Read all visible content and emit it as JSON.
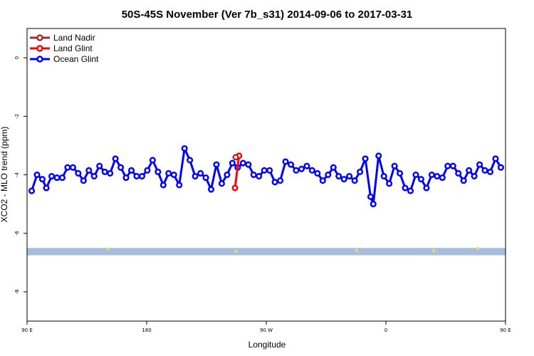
{
  "chart_data": {
    "type": "line",
    "title": "50S-45S November (Ver 7b_s31)   2014-09-06 to 2017-03-31",
    "xlabel": "Longitude",
    "ylabel": "XCO2 - MLO trend (ppm)",
    "xlim": [
      90,
      450
    ],
    "ylim": [
      -9,
      1
    ],
    "x_ticks": [
      {
        "value": 90,
        "label": "90 E"
      },
      {
        "value": 180,
        "label": "180"
      },
      {
        "value": 270,
        "label": "90 W"
      },
      {
        "value": 360,
        "label": "0"
      },
      {
        "value": 450,
        "label": "90 E"
      },
      {
        "value": 540,
        "label": "180"
      }
    ],
    "y_ticks": [
      {
        "value": 0,
        "label": "0"
      },
      {
        "value": -2,
        "label": "-2"
      },
      {
        "value": -4,
        "label": "-4"
      },
      {
        "value": -6,
        "label": "-6"
      },
      {
        "value": -8,
        "label": "-8"
      }
    ],
    "legend_position": "top-left",
    "land_ocean_band": {
      "y_min": -6.75,
      "y_max": -6.5,
      "color": "#a6bddb",
      "land_color": "#f7d56b"
    },
    "land_patches": [
      {
        "x": 151,
        "y": -6.53
      },
      {
        "x": 247,
        "y": -6.62
      },
      {
        "x": 338,
        "y": -6.58
      },
      {
        "x": 396,
        "y": -6.6
      },
      {
        "x": 429,
        "y": -6.52
      }
    ],
    "series": [
      {
        "name": "Land Nadir",
        "color": "#a52a2a",
        "points": [
          [
            247.0,
            -3.4
          ]
        ]
      },
      {
        "name": "Land Glint",
        "color": "#ff0000",
        "points": [
          [
            246.5,
            -4.45
          ],
          [
            249.5,
            -3.35
          ]
        ]
      },
      {
        "name": "Ocean Glint",
        "color": "#0000ff",
        "points": [
          [
            93.5,
            -4.55
          ],
          [
            97.5,
            -4.0
          ],
          [
            101.5,
            -4.15
          ],
          [
            104.5,
            -4.45
          ],
          [
            108.5,
            -4.05
          ],
          [
            112.5,
            -4.1
          ],
          [
            116.5,
            -4.1
          ],
          [
            120.5,
            -3.75
          ],
          [
            124.5,
            -3.75
          ],
          [
            128.5,
            -3.95
          ],
          [
            132.5,
            -4.2
          ],
          [
            136.5,
            -3.85
          ],
          [
            140.5,
            -4.05
          ],
          [
            144.5,
            -3.7
          ],
          [
            148.5,
            -3.9
          ],
          [
            152.5,
            -3.95
          ],
          [
            156.5,
            -3.45
          ],
          [
            160.5,
            -3.75
          ],
          [
            164.5,
            -4.1
          ],
          [
            168.5,
            -3.85
          ],
          [
            172.5,
            -4.05
          ],
          [
            176.5,
            -4.05
          ],
          [
            180.5,
            -3.85
          ],
          [
            184.5,
            -3.5
          ],
          [
            188.5,
            -3.9
          ],
          [
            192.5,
            -4.35
          ],
          [
            196.5,
            -3.95
          ],
          [
            200.5,
            -4.0
          ],
          [
            204.5,
            -4.35
          ],
          [
            208.5,
            -3.1
          ],
          [
            212.5,
            -3.5
          ],
          [
            216.5,
            -4.05
          ],
          [
            220.5,
            -3.95
          ],
          [
            224.5,
            -4.1
          ],
          [
            228.5,
            -4.5
          ],
          [
            232.5,
            -3.65
          ],
          [
            236.5,
            -4.3
          ],
          [
            240.5,
            -4.0
          ],
          [
            244.5,
            -3.6
          ],
          [
            248.5,
            -3.75
          ],
          [
            252.5,
            -3.6
          ],
          [
            256.5,
            -3.65
          ],
          [
            260.5,
            -4.0
          ],
          [
            264.5,
            -4.05
          ],
          [
            268.5,
            -3.85
          ],
          [
            272.5,
            -3.85
          ],
          [
            276.5,
            -4.25
          ],
          [
            280.5,
            -4.2
          ],
          [
            284.5,
            -3.55
          ],
          [
            288.5,
            -3.65
          ],
          [
            292.5,
            -3.85
          ],
          [
            296.5,
            -3.8
          ],
          [
            300.5,
            -3.7
          ],
          [
            304.5,
            -3.85
          ],
          [
            308.5,
            -3.95
          ],
          [
            312.5,
            -4.2
          ],
          [
            316.5,
            -4.0
          ],
          [
            320.5,
            -3.75
          ],
          [
            324.5,
            -4.05
          ],
          [
            328.5,
            -4.15
          ],
          [
            332.5,
            -4.05
          ],
          [
            336.5,
            -4.2
          ],
          [
            340.5,
            -3.9
          ],
          [
            344.5,
            -3.45
          ],
          [
            348.5,
            -4.75
          ],
          [
            350.5,
            -5.0
          ],
          [
            354.5,
            -3.35
          ],
          [
            358.5,
            -4.05
          ],
          [
            362.5,
            -4.3
          ],
          [
            366.5,
            -3.7
          ],
          [
            370.5,
            -3.95
          ],
          [
            374.5,
            -4.45
          ],
          [
            378.5,
            -4.55
          ],
          [
            382.5,
            -4.0
          ],
          [
            386.5,
            -4.15
          ],
          [
            390.5,
            -4.45
          ],
          [
            394.5,
            -4.0
          ],
          [
            398.5,
            -4.05
          ],
          [
            402.5,
            -4.1
          ],
          [
            406.5,
            -3.7
          ],
          [
            410.5,
            -3.7
          ],
          [
            414.5,
            -3.95
          ],
          [
            418.5,
            -4.2
          ],
          [
            422.5,
            -3.85
          ],
          [
            426.5,
            -4.05
          ],
          [
            430.5,
            -3.65
          ],
          [
            434.5,
            -3.85
          ],
          [
            438.5,
            -3.9
          ],
          [
            442.5,
            -3.45
          ],
          [
            446.5,
            -3.75
          ]
        ]
      }
    ]
  }
}
